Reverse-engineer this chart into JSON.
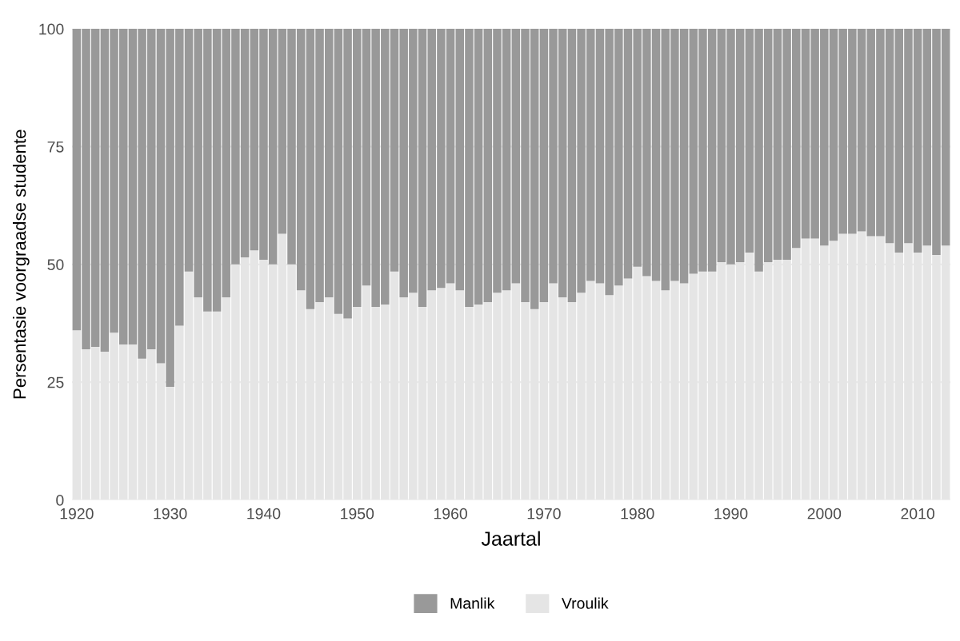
{
  "chart_data": {
    "type": "bar",
    "stacked": true,
    "xlabel": "Jaartal",
    "ylabel": "Persentasie voorgraadse studente",
    "x": [
      1920,
      1921,
      1922,
      1923,
      1924,
      1925,
      1926,
      1927,
      1928,
      1929,
      1930,
      1931,
      1932,
      1933,
      1934,
      1935,
      1936,
      1937,
      1938,
      1939,
      1940,
      1941,
      1942,
      1943,
      1944,
      1945,
      1946,
      1947,
      1948,
      1949,
      1950,
      1951,
      1952,
      1953,
      1954,
      1955,
      1956,
      1957,
      1958,
      1959,
      1960,
      1961,
      1962,
      1963,
      1964,
      1965,
      1966,
      1967,
      1968,
      1969,
      1970,
      1971,
      1972,
      1973,
      1974,
      1975,
      1976,
      1977,
      1978,
      1979,
      1980,
      1981,
      1982,
      1983,
      1984,
      1985,
      1986,
      1987,
      1988,
      1989,
      1990,
      1991,
      1992,
      1993,
      1994,
      1995,
      1996,
      1997,
      1998,
      1999,
      2000,
      2001,
      2002,
      2003,
      2004,
      2005,
      2006,
      2007,
      2008,
      2009,
      2010,
      2011,
      2012,
      2013
    ],
    "series": [
      {
        "name": "Vroulik",
        "color": "#e5e5e5",
        "values": [
          36,
          32,
          32.5,
          31.5,
          35.5,
          33,
          33,
          30,
          32,
          29,
          24,
          37,
          48.5,
          43,
          40,
          40,
          43,
          50,
          51.5,
          53,
          51,
          50,
          56.5,
          50,
          44.5,
          40.5,
          42,
          43,
          39.5,
          38.5,
          41,
          45.5,
          41,
          41.5,
          48.5,
          43,
          44,
          41,
          44.5,
          45,
          46,
          44.5,
          41,
          41.5,
          42,
          44,
          44.5,
          46,
          42,
          40.5,
          42,
          46,
          43,
          42,
          44,
          46.5,
          46,
          43.5,
          45.5,
          47,
          49.5,
          47.5,
          46.5,
          44.5,
          46.5,
          46,
          48,
          48.5,
          48.5,
          50.5,
          50,
          50.5,
          52.5,
          48.5,
          50.5,
          51,
          51,
          53.5,
          55.5,
          55.5,
          54,
          55,
          56.5,
          56.5,
          57,
          56,
          56,
          54.5,
          52.5,
          54.5,
          52.5,
          54,
          52,
          54
        ]
      },
      {
        "name": "Manlik",
        "color": "#999999",
        "values": [
          64,
          68,
          67.5,
          68.5,
          64.5,
          67,
          67,
          70,
          68,
          71,
          76,
          63,
          51.5,
          57,
          60,
          60,
          57,
          50,
          48.5,
          47,
          49,
          50,
          43.5,
          50,
          55.5,
          59.5,
          58,
          57,
          60.5,
          61.5,
          59,
          54.5,
          59,
          58.5,
          51.5,
          57,
          56,
          59,
          55.5,
          55,
          54,
          55.5,
          59,
          58.5,
          58,
          56,
          55.5,
          54,
          58,
          59.5,
          58,
          54,
          57,
          58,
          56,
          53.5,
          54,
          56.5,
          54.5,
          53,
          50.5,
          52.5,
          53.5,
          55.5,
          53.5,
          54,
          52,
          51.5,
          51.5,
          49.5,
          50,
          49.5,
          47.5,
          51.5,
          49.5,
          49,
          49,
          46.5,
          44.5,
          44.5,
          46,
          45,
          43.5,
          43.5,
          43,
          44,
          44,
          45.5,
          47.5,
          45.5,
          47.5,
          46,
          48,
          46
        ]
      }
    ],
    "xlim": [
      1919.5,
      2013.5
    ],
    "xticks": [
      1920,
      1930,
      1940,
      1950,
      1960,
      1970,
      1980,
      1990,
      2000,
      2010
    ],
    "ylim": [
      0,
      100
    ],
    "yticks": [
      0,
      25,
      50,
      75,
      100
    ],
    "grid": "y",
    "legend": "bottom"
  }
}
